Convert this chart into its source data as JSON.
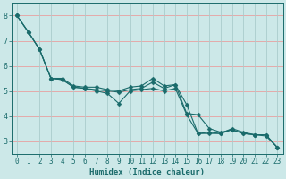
{
  "title": "",
  "xlabel": "Humidex (Indice chaleur)",
  "bg_color": "#cce8e8",
  "grid_color_h": "#e8a0a0",
  "grid_color_v": "#aacccc",
  "line_color": "#1a6b6b",
  "xlim": [
    -0.5,
    23.5
  ],
  "ylim": [
    2.5,
    8.5
  ],
  "xticks": [
    0,
    1,
    2,
    3,
    4,
    5,
    6,
    7,
    8,
    9,
    10,
    11,
    12,
    13,
    14,
    15,
    16,
    17,
    18,
    19,
    20,
    21,
    22,
    23
  ],
  "yticks": [
    3,
    4,
    5,
    6,
    7,
    8
  ],
  "line1_x": [
    0,
    1,
    2,
    3,
    4,
    5,
    6,
    7,
    8,
    9,
    10,
    11,
    12,
    13,
    14,
    15,
    16,
    17,
    18,
    19,
    20,
    21,
    22,
    23
  ],
  "line1_y": [
    8.0,
    7.35,
    6.65,
    5.5,
    5.45,
    5.15,
    5.1,
    5.05,
    5.0,
    4.95,
    5.05,
    5.1,
    5.35,
    5.1,
    5.25,
    4.1,
    4.05,
    3.5,
    3.35,
    3.45,
    3.3,
    3.25,
    3.25,
    2.75
  ],
  "line2_x": [
    0,
    1,
    2,
    3,
    4,
    5,
    6,
    7,
    8,
    9,
    10,
    11,
    12,
    13,
    14,
    15,
    16,
    17,
    18,
    19,
    20,
    21,
    22,
    23
  ],
  "line2_y": [
    8.0,
    7.35,
    6.65,
    5.5,
    5.5,
    5.2,
    5.15,
    5.15,
    5.05,
    5.0,
    5.15,
    5.2,
    5.5,
    5.2,
    5.25,
    4.45,
    3.3,
    3.35,
    3.3,
    3.5,
    3.35,
    3.25,
    3.25,
    2.75
  ],
  "line3_x": [
    0,
    1,
    2,
    3,
    4,
    5,
    6,
    7,
    8,
    9,
    10,
    11,
    12,
    13,
    14,
    15,
    16,
    17,
    18,
    19,
    20,
    21,
    22,
    23
  ],
  "line3_y": [
    8.0,
    7.35,
    6.65,
    5.5,
    5.45,
    5.15,
    5.1,
    5.0,
    4.9,
    4.5,
    5.0,
    5.05,
    5.1,
    5.0,
    5.1,
    4.05,
    3.3,
    3.3,
    3.3,
    3.45,
    3.3,
    3.25,
    3.2,
    2.75
  ],
  "marker_size": 2.5,
  "line_width": 0.8,
  "tick_fontsize": 5.5,
  "xlabel_fontsize": 6.5
}
